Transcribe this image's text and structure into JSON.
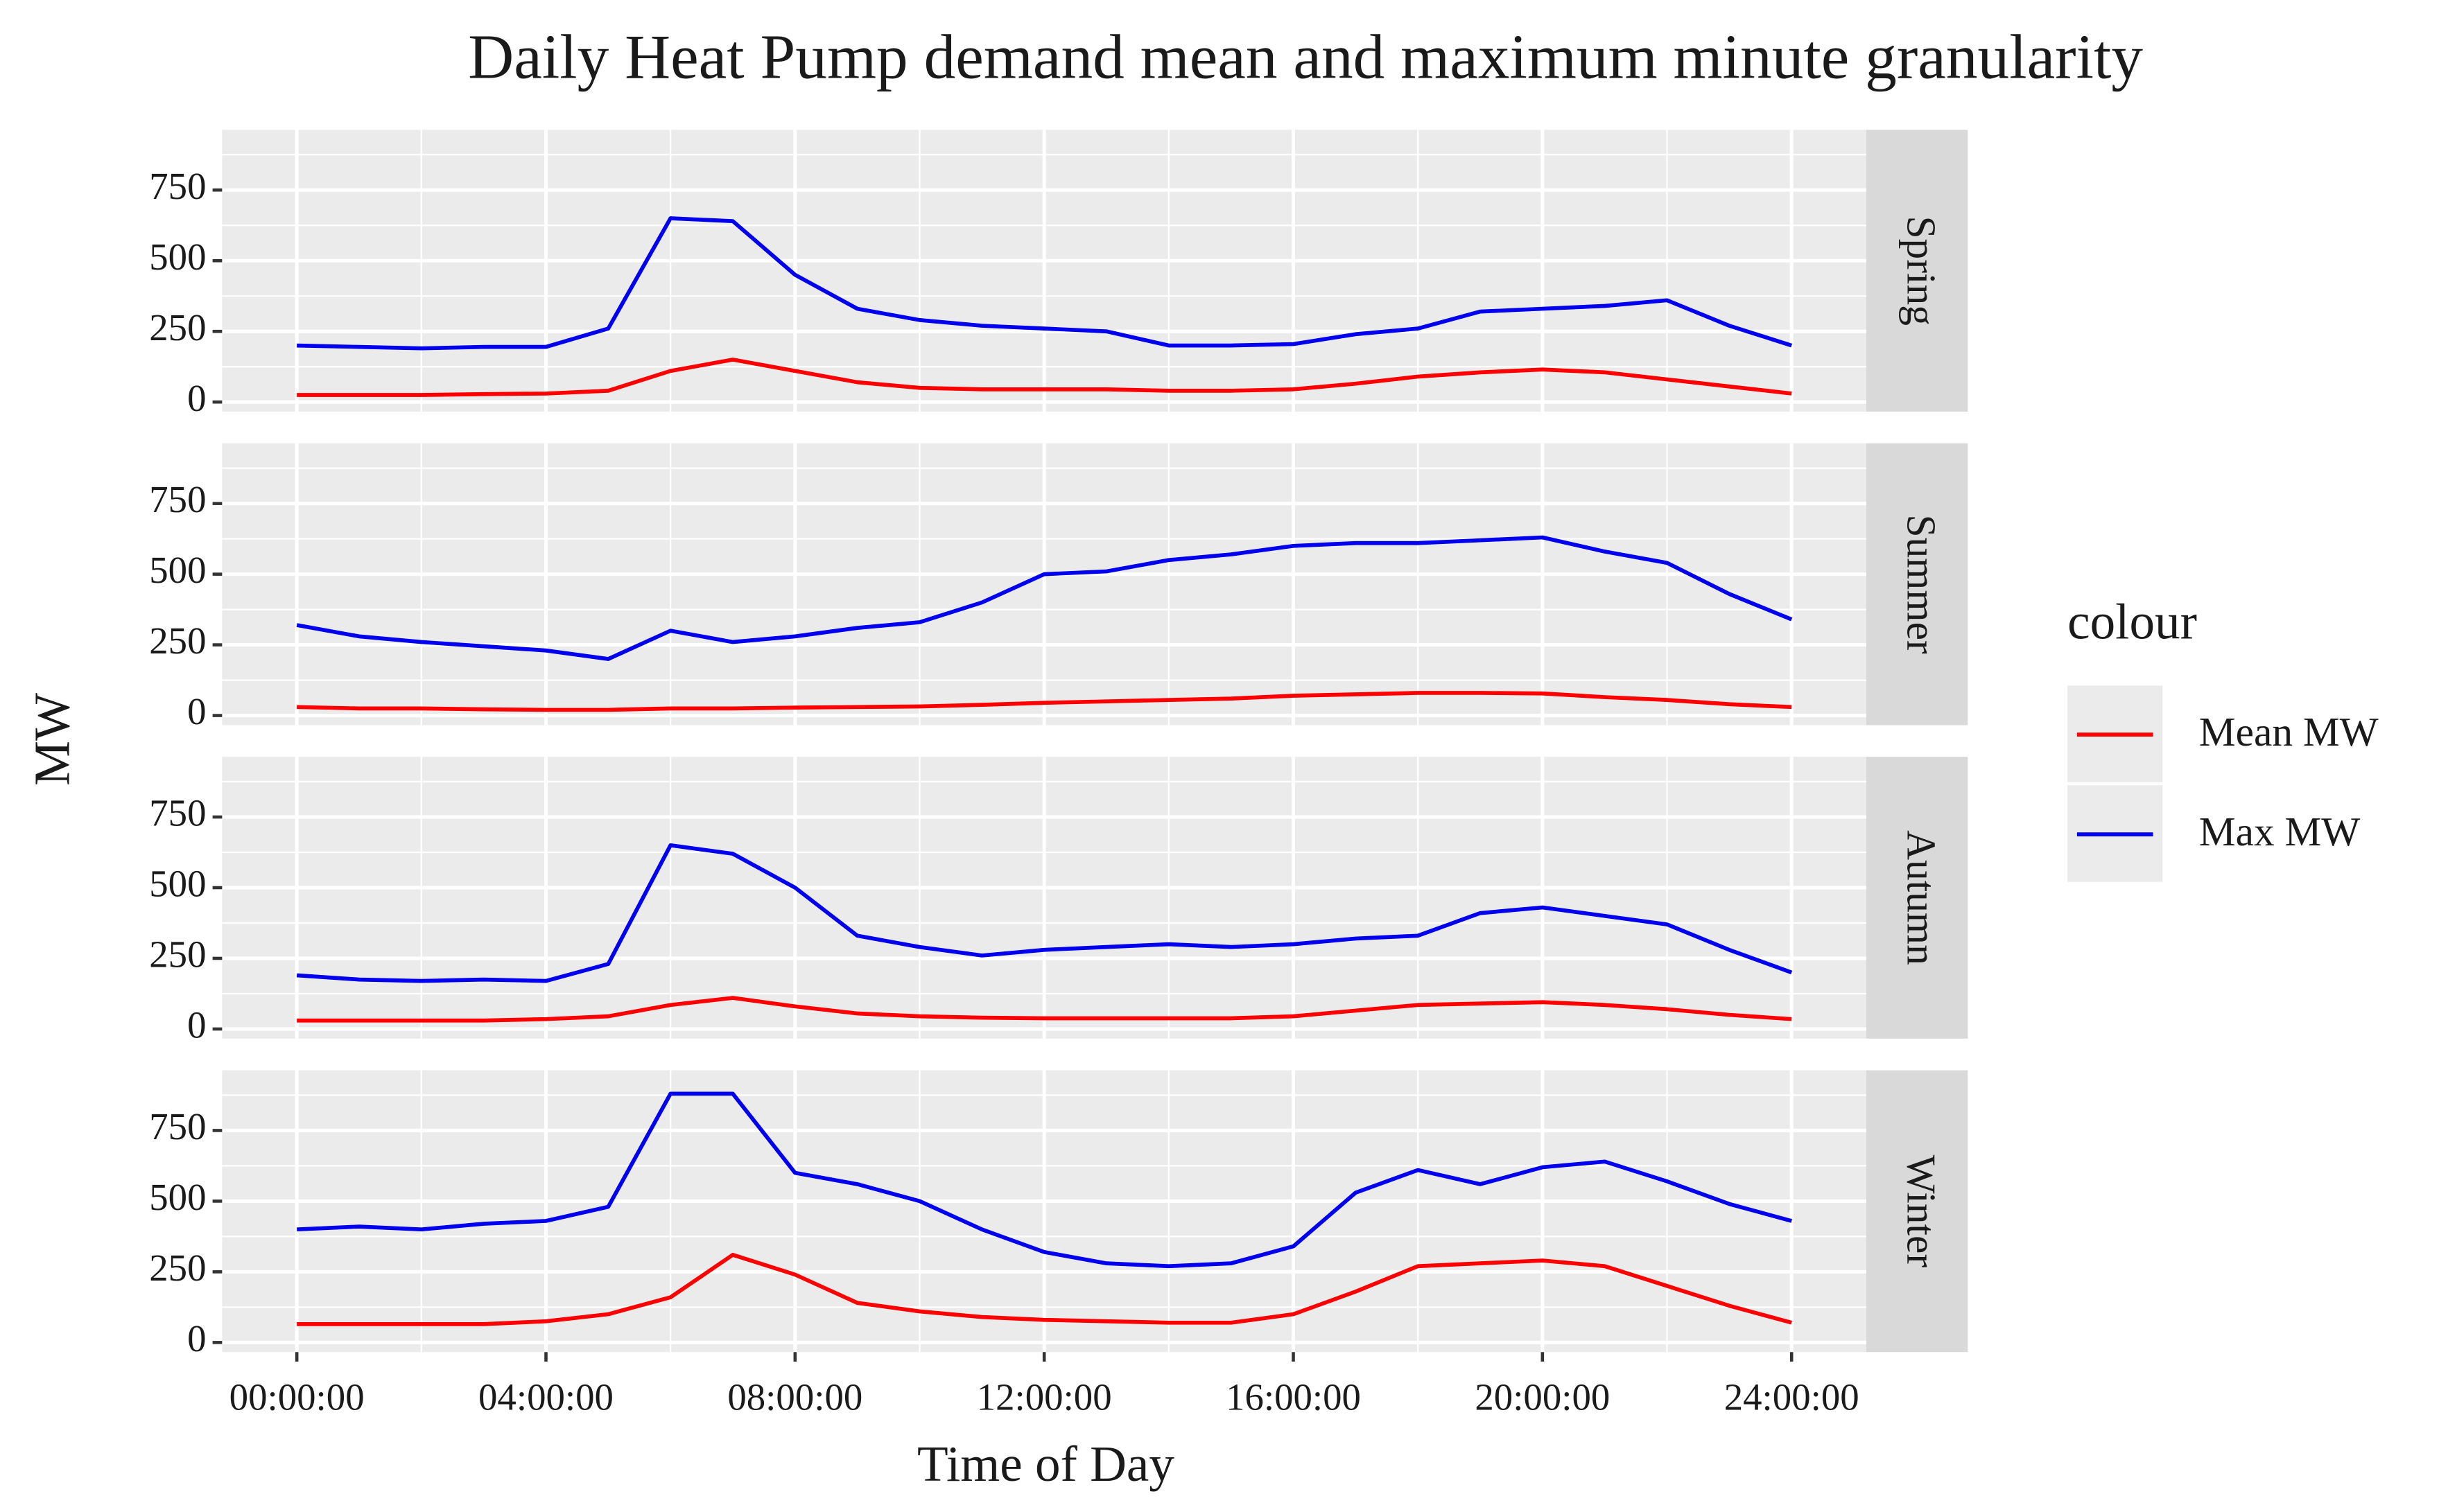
{
  "chart_data": {
    "type": "line",
    "title": "Daily Heat Pump demand mean and maximum minute granularity",
    "x_label": "Time of Day",
    "y_label": "MW",
    "legend_title": "colour",
    "legend_position": "right",
    "grid": true,
    "series": [
      {
        "name": "Mean MW",
        "color": "#ff0000"
      },
      {
        "name": "Max MW",
        "color": "#0000ee"
      }
    ],
    "x": [
      0,
      1,
      2,
      3,
      4,
      5,
      6,
      7,
      8,
      9,
      10,
      11,
      12,
      13,
      14,
      15,
      16,
      17,
      18,
      19,
      20,
      21,
      22,
      23,
      24
    ],
    "xlim": [
      -1.2,
      25.2
    ],
    "xticks": [
      {
        "value": 0,
        "label": "00:00:00"
      },
      {
        "value": 4,
        "label": "04:00:00"
      },
      {
        "value": 8,
        "label": "08:00:00"
      },
      {
        "value": 12,
        "label": "12:00:00"
      },
      {
        "value": 16,
        "label": "16:00:00"
      },
      {
        "value": 20,
        "label": "20:00:00"
      },
      {
        "value": 24,
        "label": "24:00:00"
      }
    ],
    "x_minor_ticks": [
      2,
      6,
      10,
      14,
      18,
      22
    ],
    "ylim": [
      -34,
      963
    ],
    "yticks": [
      0,
      250,
      500,
      750
    ],
    "y_minor_ticks": [
      125,
      375,
      625,
      875
    ],
    "facets": [
      {
        "label": "Spring",
        "series": [
          {
            "values": [
              25,
              25,
              25,
              28,
              30,
              40,
              110,
              150,
              110,
              70,
              50,
              45,
              45,
              45,
              40,
              40,
              45,
              65,
              90,
              105,
              115,
              105,
              80,
              55,
              30
            ]
          },
          {
            "values": [
              200,
              195,
              190,
              195,
              195,
              260,
              650,
              640,
              450,
              330,
              290,
              270,
              260,
              250,
              200,
              200,
              205,
              240,
              260,
              320,
              330,
              340,
              360,
              270,
              200
            ]
          }
        ]
      },
      {
        "label": "Summer",
        "series": [
          {
            "values": [
              30,
              25,
              25,
              22,
              20,
              20,
              25,
              25,
              28,
              30,
              32,
              38,
              45,
              50,
              55,
              60,
              70,
              75,
              80,
              80,
              78,
              65,
              55,
              40,
              30
            ]
          },
          {
            "values": [
              320,
              280,
              260,
              245,
              230,
              200,
              300,
              260,
              280,
              310,
              330,
              400,
              500,
              510,
              550,
              570,
              600,
              610,
              610,
              620,
              630,
              580,
              540,
              430,
              340
            ]
          }
        ]
      },
      {
        "label": "Autumn",
        "series": [
          {
            "values": [
              30,
              30,
              30,
              30,
              35,
              45,
              85,
              110,
              80,
              55,
              45,
              40,
              38,
              38,
              38,
              38,
              45,
              65,
              85,
              90,
              95,
              85,
              70,
              50,
              35
            ]
          },
          {
            "values": [
              190,
              175,
              170,
              175,
              170,
              230,
              650,
              620,
              500,
              330,
              290,
              260,
              280,
              290,
              300,
              290,
              300,
              320,
              330,
              410,
              430,
              400,
              370,
              280,
              200
            ]
          }
        ]
      },
      {
        "label": "Winter",
        "series": [
          {
            "values": [
              65,
              65,
              65,
              65,
              75,
              100,
              160,
              310,
              240,
              140,
              110,
              90,
              80,
              75,
              70,
              70,
              100,
              180,
              270,
              280,
              290,
              270,
              200,
              130,
              70
            ]
          },
          {
            "values": [
              400,
              410,
              400,
              420,
              430,
              480,
              880,
              880,
              600,
              560,
              500,
              400,
              320,
              280,
              270,
              280,
              340,
              530,
              610,
              560,
              620,
              640,
              570,
              490,
              430
            ]
          }
        ]
      }
    ]
  }
}
